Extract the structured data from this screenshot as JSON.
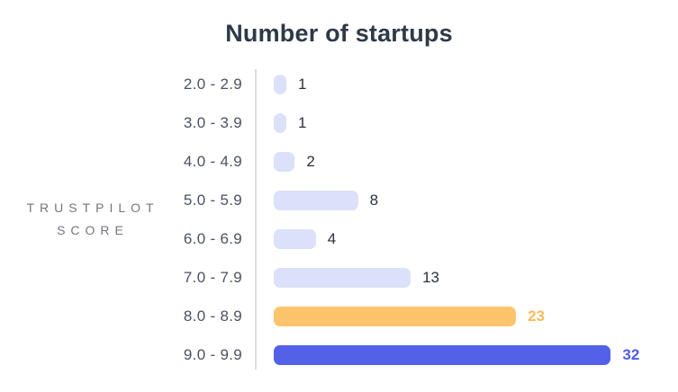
{
  "title": "Number of startups",
  "axis_label_lines": [
    "TRUSTPILOT",
    "SCORE"
  ],
  "chart_data": {
    "type": "bar",
    "orientation": "horizontal",
    "title": "Number of startups",
    "ylabel": "TRUSTPILOT SCORE",
    "xlabel": "",
    "categories": [
      "2.0 - 2.9",
      "3.0 - 3.9",
      "4.0 - 4.9",
      "5.0 - 5.9",
      "6.0 - 6.9",
      "7.0 - 7.9",
      "8.0 - 8.9",
      "9.0 - 9.9"
    ],
    "values": [
      1,
      1,
      2,
      8,
      4,
      13,
      23,
      32
    ],
    "value_labels": [
      "1",
      "1",
      "2",
      "8",
      "4",
      "13",
      "23",
      "32"
    ],
    "highlights": [
      "default",
      "default",
      "default",
      "default",
      "default",
      "default",
      "orange",
      "blue"
    ],
    "xlim": [
      0,
      33
    ],
    "grid": false,
    "legend": false
  },
  "colors": {
    "default_bar": "#dbe1f8",
    "orange_bar": "#fdc46d",
    "blue_bar": "#5360e8",
    "orange_label": "#fbba55",
    "blue_label": "#4d5ce6",
    "value_label": "#2b323d",
    "category_label": "#4a5261",
    "title": "#2e3a48",
    "axis_line": "#dcdcdc",
    "side_label": "#72767f"
  }
}
